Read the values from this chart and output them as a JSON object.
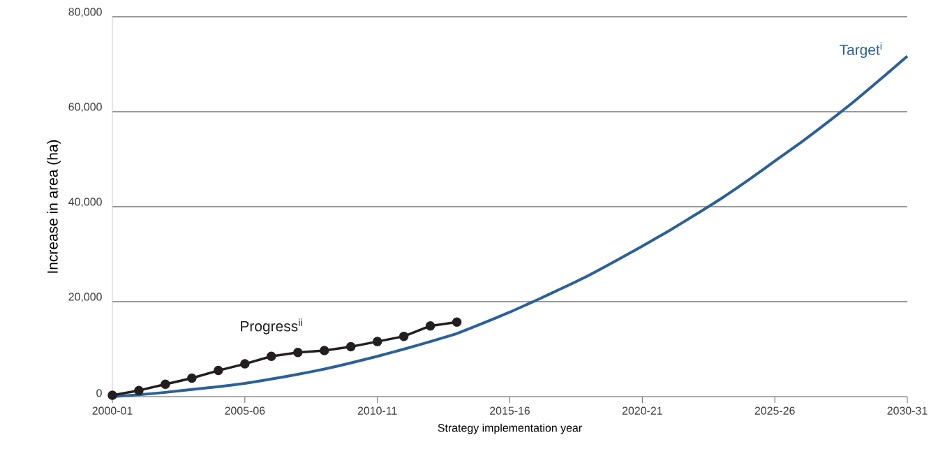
{
  "chart_data": {
    "type": "line",
    "xlabel": "Strategy implementation year",
    "ylabel": "Increase in area (ha)",
    "categories": [
      "2000-01",
      null,
      null,
      null,
      null,
      "2005-06",
      null,
      null,
      null,
      null,
      "2010-11",
      null,
      null,
      null,
      null,
      "2015-16",
      null,
      null,
      null,
      null,
      "2020-21",
      null,
      null,
      null,
      null,
      "2025-26",
      null,
      null,
      null,
      null,
      "2030-31"
    ],
    "ylim": [
      0,
      80000
    ],
    "yticks": [
      {
        "value": 0,
        "label": "0"
      },
      {
        "value": 20000,
        "label": "20,000"
      },
      {
        "value": 40000,
        "label": "40,000"
      },
      {
        "value": 60000,
        "label": "60,000"
      },
      {
        "value": 80000,
        "label": "80,000"
      }
    ],
    "grid": "y",
    "series": [
      {
        "name": "Target$^{i}$",
        "color": "#2b6196",
        "marker": "none",
        "values": [
          0,
          400,
          900,
          1500,
          2100,
          2800,
          3700,
          4700,
          5800,
          7100,
          8500,
          10000,
          11600,
          13300,
          15500,
          17800,
          20300,
          22900,
          25600,
          28600,
          31700,
          34900,
          38300,
          41800,
          45600,
          49600,
          53600,
          57800,
          62200,
          66900,
          71700
        ]
      },
      {
        "name": "Progress$^{ii}$",
        "color": "#231f20",
        "marker": "circle",
        "values": [
          300,
          1300,
          2600,
          3900,
          5500,
          6900,
          8500,
          9300,
          9700,
          10500,
          11600,
          12700,
          14900,
          15700,
          null,
          null,
          null,
          null,
          null,
          null,
          null,
          null,
          null,
          null,
          null,
          null,
          null,
          null,
          null,
          null,
          null
        ]
      }
    ]
  }
}
